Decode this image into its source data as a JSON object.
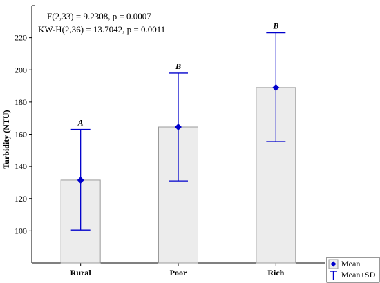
{
  "chart_data": {
    "type": "bar",
    "categories": [
      "Rural",
      "Poor",
      "Rich"
    ],
    "ylabel": "Turbidity (NTU)",
    "xlabel": "",
    "ylim": [
      80,
      240
    ],
    "yticks": [
      100,
      120,
      140,
      160,
      180,
      200,
      220
    ],
    "grid": false,
    "series": [
      {
        "name": "Mean",
        "values": [
          131.5,
          164.5,
          189.0
        ]
      },
      {
        "name": "Mean±SD",
        "lower": [
          100.5,
          131.0,
          155.5
        ],
        "upper": [
          163.0,
          198.0,
          223.0
        ]
      }
    ],
    "group_letters": [
      "A",
      "B",
      "B"
    ],
    "annotations": [
      "F(2,33) = 9.2308, p = 0.0007",
      "KW-H(2,36) = 13.7042, p = 0.0011"
    ],
    "legend": {
      "position": "bottom-right",
      "entries": [
        "Mean",
        "Mean±SD"
      ]
    },
    "colors": {
      "bar_fill": "#ececec",
      "bar_stroke": "#9a9a9a",
      "marker": "#0000cc",
      "axis": "#000000"
    }
  }
}
